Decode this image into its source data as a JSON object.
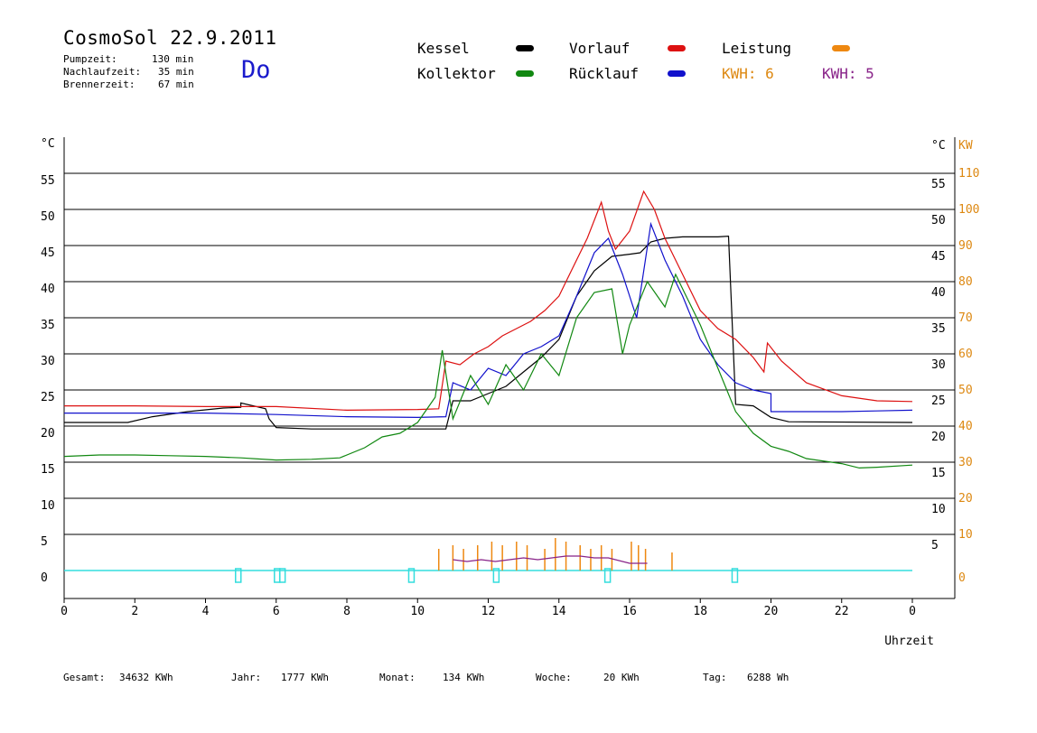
{
  "header": {
    "title": "CosmoSol 22.9.2011",
    "day": "Do",
    "stats": [
      {
        "label": "Pumpzeit:",
        "value": "130 min"
      },
      {
        "label": "Nachlaufzeit:",
        "value": "35 min"
      },
      {
        "label": "Brennerzeit:",
        "value": "67 min"
      }
    ]
  },
  "legend": {
    "kessel": "Kessel",
    "vorlauf": "Vorlauf",
    "leistung": "Leistung",
    "kollektor": "Kollektor",
    "ruecklauf": "Rücklauf",
    "kwh_orange": "KWH: 6",
    "kwh_purple": "KWH: 5"
  },
  "footer": {
    "gesamt_label": "Gesamt:",
    "gesamt_value": "34632 KWh",
    "jahr_label": "Jahr:",
    "jahr_value": "1777 KWh",
    "monat_label": "Monat:",
    "monat_value": "134 KWh",
    "woche_label": "Woche:",
    "woche_value": "20 KWh",
    "tag_label": "Tag:",
    "tag_value": "6288 Wh"
  },
  "colors": {
    "kessel": "#000000",
    "vorlauf": "#dd1111",
    "ruecklauf": "#1111cc",
    "kollektor": "#118811",
    "leistung": "#ee8811",
    "purple": "#882288",
    "cyan": "#33dddd",
    "axis_kw": "#dd8811"
  },
  "chart_data": {
    "type": "line",
    "xlabel": "Uhrzeit",
    "ylabel_left": "°C",
    "ylabel_right": "°C",
    "ylabel_right2": "KW",
    "xlim": [
      0,
      24
    ],
    "ylim": [
      0,
      55
    ],
    "grid": true,
    "x_ticks": [
      "0",
      "2",
      "4",
      "6",
      "8",
      "10",
      "12",
      "14",
      "16",
      "18",
      "20",
      "22",
      "0"
    ],
    "y_ticks": [
      "0",
      "5",
      "10",
      "15",
      "20",
      "25",
      "30",
      "35",
      "40",
      "45",
      "50",
      "55"
    ],
    "y2_ticks": [
      "0",
      "10",
      "20",
      "30",
      "40",
      "50",
      "60",
      "70",
      "80",
      "90",
      "100",
      "110"
    ],
    "series": [
      {
        "name": "Kessel",
        "color_key": "kessel",
        "x": [
          0,
          1.8,
          2.5,
          3.5,
          4.5,
          5.0,
          5.0,
          5.7,
          5.8,
          6.0,
          7,
          8,
          9,
          10.5,
          10.8,
          11.0,
          11.5,
          12,
          12.5,
          13,
          13.5,
          14,
          14.5,
          15,
          15.5,
          16,
          16.3,
          16.6,
          17.0,
          17.5,
          18.0,
          18.5,
          18.8,
          19.0,
          19.5,
          20.0,
          20.5,
          24
        ],
        "y": [
          20.5,
          20.5,
          21.3,
          22.0,
          22.5,
          22.6,
          23.2,
          22.4,
          21.0,
          19.8,
          19.6,
          19.6,
          19.6,
          19.6,
          19.6,
          23.5,
          23.5,
          24.5,
          25.5,
          27.5,
          29.5,
          32.0,
          38.0,
          41.5,
          43.5,
          43.8,
          44.0,
          45.5,
          46.0,
          46.2,
          46.2,
          46.2,
          46.3,
          23.0,
          22.8,
          21.2,
          20.6,
          20.5
        ]
      },
      {
        "name": "Vorlauf",
        "color_key": "vorlauf",
        "x": [
          0,
          2,
          4,
          6,
          8,
          10,
          10.6,
          10.8,
          11.2,
          11.6,
          12.0,
          12.4,
          12.8,
          13.2,
          13.6,
          14.0,
          14.4,
          14.8,
          15.2,
          15.4,
          15.6,
          16.0,
          16.4,
          16.7,
          17.0,
          17.5,
          18.0,
          18.5,
          19.0,
          19.5,
          19.8,
          19.9,
          20.3,
          21,
          22,
          23,
          24
        ],
        "y": [
          22.8,
          22.8,
          22.7,
          22.7,
          22.2,
          22.3,
          22.4,
          29.0,
          28.5,
          30.0,
          31.0,
          32.5,
          33.5,
          34.5,
          36.0,
          38.0,
          42.0,
          46.0,
          51.0,
          47.0,
          44.5,
          47.0,
          52.5,
          50.0,
          46.0,
          41.0,
          36.0,
          33.5,
          32.0,
          29.5,
          27.5,
          31.5,
          29.0,
          26.0,
          24.2,
          23.5,
          23.4
        ]
      },
      {
        "name": "Rücklauf",
        "color_key": "ruecklauf",
        "x": [
          0,
          2,
          4,
          6,
          8,
          10,
          10.8,
          11.0,
          11.5,
          12.0,
          12.5,
          13.0,
          13.5,
          14.0,
          14.5,
          15.0,
          15.4,
          15.8,
          16.2,
          16.6,
          17.0,
          17.5,
          18.0,
          18.5,
          19.0,
          19.5,
          20.0,
          20.0,
          21,
          22,
          23,
          24
        ],
        "y": [
          21.8,
          21.8,
          21.8,
          21.6,
          21.3,
          21.2,
          21.3,
          26.0,
          25.0,
          28.0,
          27.0,
          30.0,
          31.0,
          32.5,
          38.0,
          44.0,
          46.0,
          41.0,
          35.0,
          48.0,
          43.0,
          38.0,
          32.0,
          28.5,
          26.0,
          25.0,
          24.5,
          22.0,
          22.0,
          22.0,
          22.1,
          22.2
        ]
      },
      {
        "name": "Kollektor",
        "color_key": "kollektor",
        "x": [
          0,
          1,
          2,
          3,
          4,
          5,
          6,
          7,
          7.8,
          8.5,
          9,
          9.5,
          10,
          10.5,
          10.7,
          11.0,
          11.5,
          12.0,
          12.5,
          13.0,
          13.5,
          14.0,
          14.5,
          15.0,
          15.5,
          15.8,
          16.0,
          16.5,
          17.0,
          17.3,
          17.6,
          18.0,
          18.5,
          19.0,
          19.5,
          20.0,
          20.5,
          21,
          22,
          22.5,
          23,
          24
        ],
        "y": [
          15.8,
          16.0,
          16.0,
          15.9,
          15.8,
          15.6,
          15.3,
          15.4,
          15.6,
          17.0,
          18.5,
          19.0,
          20.5,
          24.0,
          30.5,
          21.0,
          27.0,
          23.0,
          28.5,
          25.0,
          30.0,
          27.0,
          35.0,
          38.5,
          39.0,
          30.0,
          34.0,
          40.0,
          36.5,
          41.0,
          38.0,
          34.0,
          28.0,
          22.0,
          19.0,
          17.2,
          16.5,
          15.5,
          14.8,
          14.2,
          14.3,
          14.6
        ]
      }
    ],
    "leistung": {
      "name": "Leistung",
      "x": [
        10.6,
        11.0,
        11.3,
        11.7,
        12.1,
        12.4,
        12.8,
        13.1,
        13.6,
        13.9,
        14.2,
        14.6,
        14.9,
        15.2,
        15.5,
        16.05,
        16.25,
        16.45,
        17.2
      ],
      "y": [
        6,
        7,
        6,
        7,
        8,
        7,
        8,
        7,
        6,
        9,
        8,
        7,
        6,
        7,
        6,
        8,
        7,
        6,
        5
      ]
    },
    "purple": {
      "x": [
        11.0,
        11.4,
        11.8,
        12.2,
        12.6,
        13.0,
        13.4,
        13.8,
        14.2,
        14.6,
        15.0,
        15.4,
        16.0,
        16.5
      ],
      "y": [
        3,
        2.5,
        3,
        2.5,
        3,
        3.5,
        3,
        3.5,
        4,
        4,
        3.5,
        3.5,
        2,
        2
      ]
    },
    "pump_marks": [
      4.85,
      5.95,
      6.1,
      9.75,
      12.15,
      15.3,
      18.9
    ]
  }
}
